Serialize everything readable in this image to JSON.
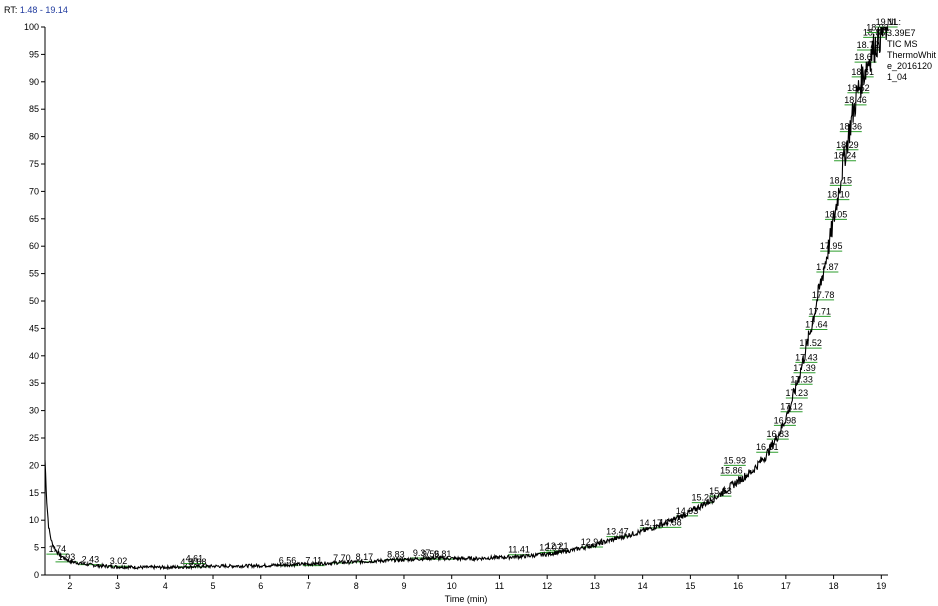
{
  "header": {
    "rt_prefix": "RT:",
    "rt_range": "1.48 - 19.14"
  },
  "info_box": {
    "lines": [
      "NL:",
      "3.39E7",
      "TIC  MS",
      "ThermoWhit",
      "e_2016120",
      "1_04"
    ]
  },
  "chart_data": {
    "type": "line",
    "xlabel": "Time (min)",
    "ylabel": "",
    "xlim": [
      1.48,
      19.14
    ],
    "ylim": [
      0,
      100
    ],
    "x_ticks": [
      2,
      3,
      4,
      5,
      6,
      7,
      8,
      9,
      10,
      11,
      12,
      13,
      14,
      15,
      16,
      17,
      18,
      19
    ],
    "y_ticks": [
      0,
      5,
      10,
      15,
      20,
      25,
      30,
      35,
      40,
      45,
      50,
      55,
      60,
      65,
      70,
      75,
      80,
      85,
      90,
      95,
      100
    ],
    "grid": false,
    "line_color": "#000000",
    "peak_marker_color": "#2e9e2e",
    "trace": [
      [
        1.48,
        21
      ],
      [
        1.52,
        13
      ],
      [
        1.56,
        8.5
      ],
      [
        1.62,
        6
      ],
      [
        1.7,
        4.6
      ],
      [
        1.8,
        3.6
      ],
      [
        1.9,
        3.0
      ],
      [
        2.0,
        2.5
      ],
      [
        2.3,
        2.0
      ],
      [
        2.6,
        1.7
      ],
      [
        3.0,
        1.5
      ],
      [
        3.5,
        1.4
      ],
      [
        4.0,
        1.4
      ],
      [
        4.5,
        1.5
      ],
      [
        5.0,
        1.6
      ],
      [
        6.0,
        1.7
      ],
      [
        7.0,
        2.0
      ],
      [
        8.0,
        2.4
      ],
      [
        9.0,
        2.8
      ],
      [
        9.6,
        3.1
      ],
      [
        10.0,
        3.0
      ],
      [
        10.5,
        3.0
      ],
      [
        11.0,
        3.2
      ],
      [
        11.5,
        3.4
      ],
      [
        12.0,
        3.8
      ],
      [
        12.5,
        4.5
      ],
      [
        13.0,
        5.5
      ],
      [
        13.5,
        6.8
      ],
      [
        14.0,
        8.0
      ],
      [
        14.5,
        9.5
      ],
      [
        15.0,
        11.5
      ],
      [
        15.5,
        14.0
      ],
      [
        15.9,
        16.5
      ],
      [
        16.3,
        19.0
      ],
      [
        16.6,
        22.0
      ],
      [
        16.9,
        26.5
      ],
      [
        17.1,
        31.0
      ],
      [
        17.3,
        37.0
      ],
      [
        17.5,
        44.0
      ],
      [
        17.7,
        52.0
      ],
      [
        17.9,
        60.0
      ],
      [
        18.05,
        67.0
      ],
      [
        18.2,
        75.0
      ],
      [
        18.35,
        82.0
      ],
      [
        18.5,
        88.0
      ],
      [
        18.65,
        92.0
      ],
      [
        18.8,
        95.5
      ],
      [
        18.95,
        98.0
      ],
      [
        19.05,
        99.5
      ],
      [
        19.14,
        100
      ]
    ],
    "peaks": [
      {
        "label": "1.74",
        "x": 1.74,
        "y": 3.8
      },
      {
        "label": "1.93",
        "x": 1.93,
        "y": 2.4
      },
      {
        "label": "2.43",
        "x": 2.43,
        "y": 1.9
      },
      {
        "label": "3.02",
        "x": 3.02,
        "y": 1.6
      },
      {
        "label": "4.50",
        "x": 4.5,
        "y": 1.5
      },
      {
        "label": "4.61",
        "x": 4.61,
        "y": 2.1
      },
      {
        "label": "4.68",
        "x": 4.68,
        "y": 1.5
      },
      {
        "label": "6.56",
        "x": 6.56,
        "y": 1.7
      },
      {
        "label": "7.11",
        "x": 7.11,
        "y": 1.7
      },
      {
        "label": "7.70",
        "x": 7.7,
        "y": 2.2
      },
      {
        "label": "8.17",
        "x": 8.17,
        "y": 2.4
      },
      {
        "label": "8.83",
        "x": 8.83,
        "y": 2.8
      },
      {
        "label": "9.37",
        "x": 9.37,
        "y": 3.1
      },
      {
        "label": "9.56",
        "x": 9.56,
        "y": 2.9
      },
      {
        "label": "9.81",
        "x": 9.81,
        "y": 2.9
      },
      {
        "label": "11.41",
        "x": 11.41,
        "y": 3.7
      },
      {
        "label": "12.07",
        "x": 12.07,
        "y": 4.1
      },
      {
        "label": "12.21",
        "x": 12.21,
        "y": 4.4
      },
      {
        "label": "12.94",
        "x": 12.94,
        "y": 5.1
      },
      {
        "label": "13.47",
        "x": 13.47,
        "y": 7.0
      },
      {
        "label": "14.17",
        "x": 14.17,
        "y": 8.6
      },
      {
        "label": "14.58",
        "x": 14.58,
        "y": 8.7
      },
      {
        "label": "14.93",
        "x": 14.93,
        "y": 10.8
      },
      {
        "label": "15.26",
        "x": 15.26,
        "y": 13.2
      },
      {
        "label": "15.63",
        "x": 15.63,
        "y": 14.4
      },
      {
        "label": "15.86",
        "x": 15.86,
        "y": 18.2
      },
      {
        "label": "15.93",
        "x": 15.93,
        "y": 20.0
      },
      {
        "label": "16.61",
        "x": 16.61,
        "y": 22.4
      },
      {
        "label": "16.83",
        "x": 16.83,
        "y": 24.8
      },
      {
        "label": "16.98",
        "x": 16.98,
        "y": 27.3
      },
      {
        "label": "17.12",
        "x": 17.12,
        "y": 29.8
      },
      {
        "label": "17.23",
        "x": 17.23,
        "y": 32.3
      },
      {
        "label": "17.33",
        "x": 17.33,
        "y": 34.8
      },
      {
        "label": "17.39",
        "x": 17.39,
        "y": 36.9
      },
      {
        "label": "17.43",
        "x": 17.43,
        "y": 38.8
      },
      {
        "label": "17.52",
        "x": 17.52,
        "y": 41.4
      },
      {
        "label": "17.64",
        "x": 17.64,
        "y": 44.8
      },
      {
        "label": "17.71",
        "x": 17.71,
        "y": 47.2
      },
      {
        "label": "17.78",
        "x": 17.78,
        "y": 50.2
      },
      {
        "label": "17.87",
        "x": 17.87,
        "y": 55.3
      },
      {
        "label": "17.95",
        "x": 17.95,
        "y": 59.1
      },
      {
        "label": "18.05",
        "x": 18.05,
        "y": 64.9
      },
      {
        "label": "18.10",
        "x": 18.1,
        "y": 68.5
      },
      {
        "label": "18.15",
        "x": 18.15,
        "y": 71.1
      },
      {
        "label": "18.24",
        "x": 18.24,
        "y": 75.6
      },
      {
        "label": "18.29",
        "x": 18.29,
        "y": 77.6
      },
      {
        "label": "18.36",
        "x": 18.36,
        "y": 80.9
      },
      {
        "label": "18.46",
        "x": 18.46,
        "y": 85.8
      },
      {
        "label": "18.52",
        "x": 18.52,
        "y": 88.0
      },
      {
        "label": "18.61",
        "x": 18.61,
        "y": 90.9
      },
      {
        "label": "18.67",
        "x": 18.67,
        "y": 93.6
      },
      {
        "label": "18.72",
        "x": 18.72,
        "y": 95.8
      },
      {
        "label": "18.85",
        "x": 18.85,
        "y": 98.1
      },
      {
        "label": "18.92",
        "x": 18.92,
        "y": 99.0
      },
      {
        "label": "19.11",
        "x": 19.11,
        "y": 100
      }
    ]
  }
}
